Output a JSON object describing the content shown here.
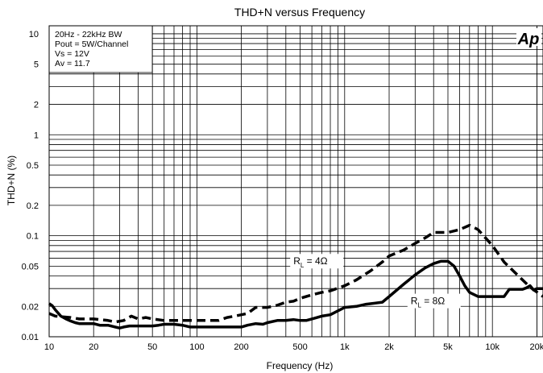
{
  "chart_data": {
    "type": "line",
    "title": "THD+N versus Frequency",
    "xlabel": "Frequency (Hz)",
    "ylabel": "THD+N (%)",
    "x_scale": "log",
    "y_scale": "log",
    "xlim": [
      10,
      22000
    ],
    "ylim": [
      0.01,
      12
    ],
    "grid": true,
    "x_ticks": [
      {
        "value": 10,
        "label": "10"
      },
      {
        "value": 20,
        "label": "20"
      },
      {
        "value": 50,
        "label": "50"
      },
      {
        "value": 100,
        "label": "100"
      },
      {
        "value": 200,
        "label": "200"
      },
      {
        "value": 500,
        "label": "500"
      },
      {
        "value": 1000,
        "label": "1k"
      },
      {
        "value": 2000,
        "label": "2k"
      },
      {
        "value": 5000,
        "label": "5k"
      },
      {
        "value": 10000,
        "label": "10k"
      },
      {
        "value": 20000,
        "label": "20k"
      }
    ],
    "y_ticks": [
      {
        "value": 0.01,
        "label": "0.01"
      },
      {
        "value": 0.02,
        "label": "0.02"
      },
      {
        "value": 0.05,
        "label": "0.05"
      },
      {
        "value": 0.1,
        "label": "0.1"
      },
      {
        "value": 0.2,
        "label": "0.2"
      },
      {
        "value": 0.5,
        "label": "0.5"
      },
      {
        "value": 1,
        "label": "1"
      },
      {
        "value": 2,
        "label": "2"
      },
      {
        "value": 5,
        "label": "5"
      },
      {
        "value": 10,
        "label": "10"
      }
    ],
    "conditions": [
      "20Hz - 22kHz BW",
      "Pout = 5W/Channel",
      "Vs = 12V",
      "Av = 11.7"
    ],
    "logo_text": "Ap",
    "series": [
      {
        "name": "RL = 4Ω",
        "label_main": "R",
        "label_sub": "L",
        "label_rest": " = 4Ω",
        "label_at": [
          450,
          0.052
        ],
        "style": "dashed",
        "x": [
          10,
          11,
          12,
          14,
          16,
          18,
          20,
          22,
          25,
          28,
          32,
          36,
          40,
          45,
          50,
          60,
          70,
          80,
          90,
          100,
          120,
          140,
          160,
          180,
          200,
          220,
          250,
          300,
          350,
          400,
          450,
          500,
          600,
          700,
          800,
          1000,
          1200,
          1500,
          1800,
          2000,
          2500,
          3000,
          3500,
          4000,
          5000,
          6000,
          7000,
          8000,
          10000,
          12000,
          15000,
          18000,
          22000
        ],
        "y": [
          0.017,
          0.016,
          0.0158,
          0.0155,
          0.015,
          0.015,
          0.015,
          0.0148,
          0.0145,
          0.014,
          0.0145,
          0.016,
          0.015,
          0.0155,
          0.015,
          0.0145,
          0.0145,
          0.0145,
          0.0145,
          0.0145,
          0.0145,
          0.0145,
          0.0155,
          0.016,
          0.0165,
          0.017,
          0.0195,
          0.0195,
          0.0205,
          0.022,
          0.0225,
          0.024,
          0.026,
          0.0275,
          0.0285,
          0.032,
          0.0365,
          0.045,
          0.055,
          0.063,
          0.072,
          0.084,
          0.095,
          0.108,
          0.108,
          0.115,
          0.127,
          0.115,
          0.08,
          0.055,
          0.04,
          0.031,
          0.025
        ]
      },
      {
        "name": "RL = 8Ω",
        "label_main": "R",
        "label_sub": "L",
        "label_rest": " = 8Ω",
        "label_at": [
          2800,
          0.021
        ],
        "style": "solid",
        "x": [
          10,
          10.5,
          11,
          12,
          13,
          14,
          15,
          16,
          18,
          20,
          22,
          25,
          28,
          30,
          32,
          35,
          40,
          45,
          50,
          55,
          60,
          70,
          80,
          90,
          100,
          110,
          120,
          140,
          160,
          180,
          200,
          220,
          250,
          280,
          300,
          350,
          400,
          450,
          500,
          550,
          600,
          700,
          800,
          1000,
          1200,
          1400,
          1600,
          1800,
          2000,
          2500,
          3000,
          3500,
          4000,
          4500,
          5000,
          5500,
          6000,
          6500,
          7000,
          8000,
          10000,
          12000,
          13000,
          14000,
          15000,
          16000,
          17000,
          18000,
          19000,
          20000,
          22000
        ],
        "y": [
          0.0213,
          0.0203,
          0.0185,
          0.016,
          0.015,
          0.0143,
          0.0138,
          0.0135,
          0.0135,
          0.0135,
          0.013,
          0.013,
          0.0125,
          0.0122,
          0.0125,
          0.0128,
          0.0128,
          0.0128,
          0.0128,
          0.013,
          0.0133,
          0.0133,
          0.013,
          0.0125,
          0.0125,
          0.0125,
          0.0125,
          0.0125,
          0.0125,
          0.0125,
          0.0125,
          0.013,
          0.0135,
          0.0133,
          0.0138,
          0.0145,
          0.0145,
          0.0148,
          0.0145,
          0.0145,
          0.015,
          0.016,
          0.0165,
          0.0195,
          0.02,
          0.021,
          0.0215,
          0.022,
          0.025,
          0.033,
          0.041,
          0.048,
          0.053,
          0.056,
          0.056,
          0.05,
          0.04,
          0.032,
          0.0275,
          0.025,
          0.025,
          0.025,
          0.0295,
          0.0295,
          0.0295,
          0.0295,
          0.0305,
          0.032,
          0.029,
          0.03,
          0.03
        ]
      }
    ]
  }
}
